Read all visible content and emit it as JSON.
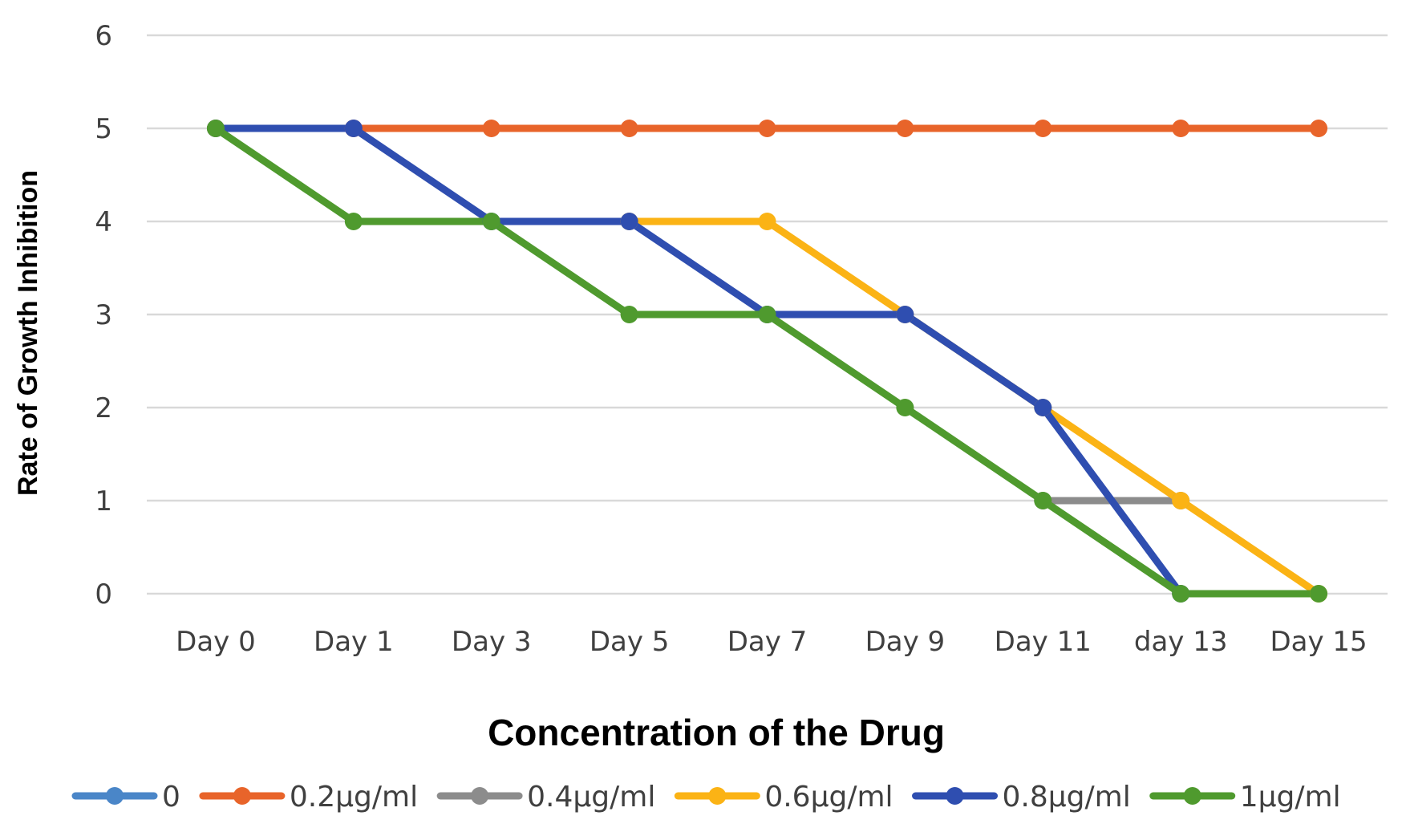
{
  "chart_data": {
    "type": "line",
    "title": "",
    "xlabel": "Concentration of the Drug",
    "ylabel": "Rate of Growth Inhibition",
    "categories": [
      "Day 0",
      "Day 1",
      "Day 3",
      "Day 5",
      "Day 7",
      "Day 9",
      "Day 11",
      "day 13",
      "Day 15"
    ],
    "ylim": [
      0,
      6
    ],
    "yticks": [
      "0",
      "1",
      "2",
      "3",
      "4",
      "5",
      "6"
    ],
    "grid": true,
    "legend_position": "bottom",
    "series": [
      {
        "name": "0",
        "color": "#4a86c8",
        "values": [
          null,
          null,
          null,
          null,
          null,
          null,
          null,
          null,
          null
        ]
      },
      {
        "name": "0.2µg/ml",
        "color": "#e8642a",
        "values": [
          5,
          5,
          5,
          5,
          5,
          5,
          5,
          5,
          5
        ]
      },
      {
        "name": "0.4µg/ml",
        "color": "#8c8c8c",
        "values": [
          null,
          null,
          null,
          null,
          null,
          null,
          1,
          1,
          null
        ]
      },
      {
        "name": "0.6µg/ml",
        "color": "#fbb315",
        "values": [
          null,
          null,
          null,
          4,
          4,
          3,
          2,
          1,
          0
        ]
      },
      {
        "name": "0.8µg/ml",
        "color": "#2f4eb0",
        "values": [
          5,
          5,
          4,
          4,
          3,
          3,
          2,
          0,
          null
        ]
      },
      {
        "name": "1µg/ml",
        "color": "#4f9a2e",
        "values": [
          5,
          4,
          4,
          3,
          3,
          2,
          1,
          0,
          0
        ]
      }
    ]
  }
}
